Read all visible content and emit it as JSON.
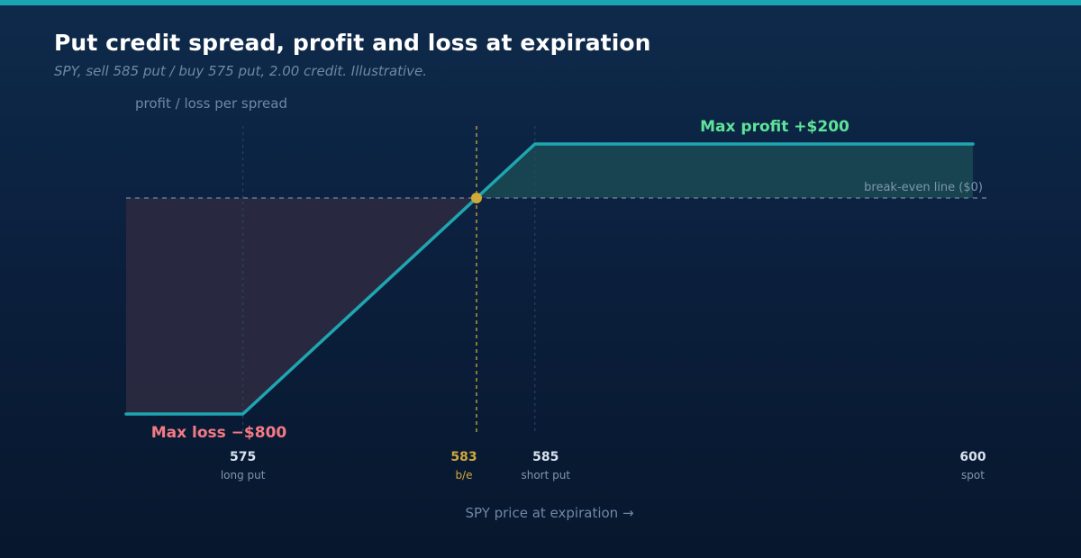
{
  "title": "Put credit spread, profit and loss at expiration",
  "subtitle": "SPY, sell 585 put / buy 575 put, 2.00 credit. Illustrative.",
  "chart_data": {
    "type": "line",
    "title": "Put credit spread, profit and loss at expiration",
    "subtitle": "SPY, sell 585 put / buy 575 put, 2.00 credit. Illustrative.",
    "ylabel": "profit / loss per spread",
    "xlabel": "SPY price at expiration →",
    "x": [
      571,
      575,
      583,
      585,
      600
    ],
    "series": [
      {
        "values": [
          -800,
          -800,
          0,
          200,
          200
        ]
      }
    ],
    "xlim": [
      571,
      600
    ],
    "ylim": [
      -800,
      200
    ],
    "grid": false,
    "colors": {
      "line": "#1fa6b1",
      "profit_fill": "#1a4a52",
      "loss_fill": "#2a2a40",
      "breakeven": "#d0a93a",
      "profit_text": "#5ee39a",
      "loss_text": "#f57a85",
      "zero_line": "#6f88a6"
    },
    "ticks": [
      {
        "value": 575,
        "label": "575",
        "sublabel": "long put",
        "style": "normal"
      },
      {
        "value": 583,
        "label": "583",
        "sublabel": "b/e",
        "style": "breakeven"
      },
      {
        "value": 585,
        "label": "585",
        "sublabel": "short put",
        "style": "normal"
      },
      {
        "value": 600,
        "label": "600",
        "sublabel": "spot",
        "style": "normal"
      }
    ],
    "annotations": {
      "max_profit": "Max profit +$200",
      "max_loss": "Max loss −$800",
      "zero_line": "break-even line ($0)"
    },
    "breakeven": 583,
    "guides": [
      575,
      585
    ]
  }
}
